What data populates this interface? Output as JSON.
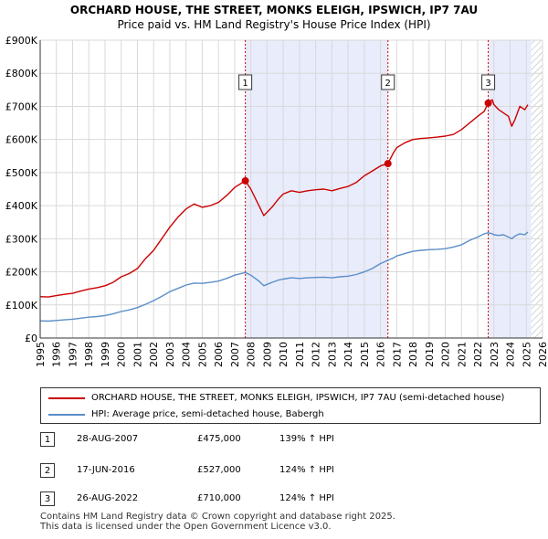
{
  "title_line1": "ORCHARD HOUSE, THE STREET, MONKS ELEIGH, IPSWICH, IP7 7AU",
  "title_line2": "Price paid vs. HM Land Registry's House Price Index (HPI)",
  "colors": {
    "property_line": "#cc0000",
    "hpi_line": "#5b8ec9",
    "shade": "#e8ecfb",
    "hatch": "#bbbbbb",
    "marker_line": "#cc0000",
    "grid": "#d9d9d9"
  },
  "chart_data": {
    "type": "line",
    "title": "ORCHARD HOUSE, THE STREET, MONKS ELEIGH, IPSWICH, IP7 7AU",
    "subtitle": "Price paid vs. HM Land Registry's House Price Index (HPI)",
    "xlabel": "",
    "ylabel": "",
    "xlim": [
      1995,
      2026
    ],
    "ylim": [
      0,
      900000
    ],
    "y_ticks": [
      0,
      100000,
      200000,
      300000,
      400000,
      500000,
      600000,
      700000,
      800000,
      900000
    ],
    "y_tick_labels": [
      "£0",
      "£100K",
      "£200K",
      "£300K",
      "£400K",
      "£500K",
      "£600K",
      "£700K",
      "£800K",
      "£900K"
    ],
    "x_ticks": [
      1995,
      1996,
      1997,
      1998,
      1999,
      2000,
      2001,
      2002,
      2003,
      2004,
      2005,
      2006,
      2007,
      2008,
      2009,
      2010,
      2011,
      2012,
      2013,
      2014,
      2015,
      2016,
      2017,
      2018,
      2019,
      2020,
      2021,
      2022,
      2023,
      2024,
      2025,
      2026
    ],
    "x_tick_labels": [
      "1995",
      "1996",
      "1997",
      "1998",
      "1999",
      "2000",
      "2001",
      "2002",
      "2003",
      "2004",
      "2005",
      "2006",
      "2007",
      "2008",
      "2009",
      "2010",
      "2011",
      "2012",
      "2013",
      "2014",
      "2015",
      "2016",
      "2017",
      "2018",
      "2019",
      "2020",
      "2021",
      "2022",
      "2023",
      "2024",
      "2025",
      "2026"
    ],
    "grid": true,
    "shaded_ranges": [
      [
        2007.66,
        2016.46
      ],
      [
        2022.65,
        2025.3
      ]
    ],
    "hatched_range": [
      2025.3,
      2026
    ],
    "series": [
      {
        "name": "ORCHARD HOUSE, THE STREET, MONKS ELEIGH, IPSWICH, IP7 7AU (semi-detached house)",
        "color": "#cc0000",
        "x": [
          1995.0,
          1995.5,
          1996.0,
          1996.5,
          1997.0,
          1997.5,
          1998.0,
          1998.5,
          1999.0,
          1999.5,
          2000.0,
          2000.5,
          2001.0,
          2001.5,
          2002.0,
          2002.5,
          2003.0,
          2003.5,
          2004.0,
          2004.5,
          2005.0,
          2005.5,
          2006.0,
          2006.5,
          2007.0,
          2007.66,
          2008.0,
          2008.5,
          2008.8,
          2009.0,
          2009.3,
          2009.7,
          2010.0,
          2010.5,
          2011.0,
          2011.5,
          2012.0,
          2012.5,
          2013.0,
          2013.5,
          2014.0,
          2014.5,
          2015.0,
          2015.5,
          2016.0,
          2016.46,
          2016.8,
          2017.0,
          2017.5,
          2018.0,
          2018.5,
          2019.0,
          2019.5,
          2020.0,
          2020.5,
          2021.0,
          2021.5,
          2022.0,
          2022.4,
          2022.65,
          2022.9,
          2023.0,
          2023.3,
          2023.6,
          2023.9,
          2024.1,
          2024.3,
          2024.6,
          2024.9,
          2025.1
        ],
        "values": [
          125000,
          124000,
          128000,
          132000,
          135000,
          142000,
          148000,
          152000,
          158000,
          168000,
          185000,
          195000,
          210000,
          240000,
          265000,
          300000,
          335000,
          365000,
          390000,
          405000,
          395000,
          400000,
          410000,
          430000,
          455000,
          475000,
          450000,
          400000,
          370000,
          380000,
          395000,
          420000,
          435000,
          445000,
          440000,
          445000,
          448000,
          450000,
          445000,
          452000,
          458000,
          470000,
          490000,
          505000,
          520000,
          527000,
          560000,
          575000,
          590000,
          600000,
          603000,
          605000,
          607000,
          610000,
          615000,
          630000,
          650000,
          670000,
          685000,
          710000,
          720000,
          705000,
          690000,
          680000,
          670000,
          640000,
          660000,
          700000,
          690000,
          705000
        ]
      },
      {
        "name": "HPI: Average price, semi-detached house, Babergh",
        "color": "#5b8ec9",
        "x": [
          1995.0,
          1995.5,
          1996.0,
          1996.5,
          1997.0,
          1997.5,
          1998.0,
          1998.5,
          1999.0,
          1999.5,
          2000.0,
          2000.5,
          2001.0,
          2001.5,
          2002.0,
          2002.5,
          2003.0,
          2003.5,
          2004.0,
          2004.5,
          2005.0,
          2005.5,
          2006.0,
          2006.5,
          2007.0,
          2007.66,
          2008.0,
          2008.5,
          2008.8,
          2009.0,
          2009.3,
          2009.7,
          2010.0,
          2010.5,
          2011.0,
          2011.5,
          2012.0,
          2012.5,
          2013.0,
          2013.5,
          2014.0,
          2014.5,
          2015.0,
          2015.5,
          2016.0,
          2016.46,
          2016.8,
          2017.0,
          2017.5,
          2018.0,
          2018.5,
          2019.0,
          2019.5,
          2020.0,
          2020.5,
          2021.0,
          2021.5,
          2022.0,
          2022.4,
          2022.65,
          2022.9,
          2023.0,
          2023.3,
          2023.6,
          2023.9,
          2024.1,
          2024.3,
          2024.6,
          2024.9,
          2025.1
        ],
        "values": [
          52000,
          51000,
          53000,
          55000,
          57000,
          60000,
          63000,
          65000,
          68000,
          73000,
          80000,
          85000,
          92000,
          102000,
          113000,
          126000,
          140000,
          150000,
          160000,
          166000,
          165000,
          168000,
          172000,
          180000,
          190000,
          198000,
          190000,
          172000,
          158000,
          162000,
          168000,
          175000,
          178000,
          182000,
          180000,
          182000,
          183000,
          184000,
          182000,
          185000,
          187000,
          192000,
          200000,
          210000,
          225000,
          235000,
          242000,
          248000,
          255000,
          262000,
          265000,
          267000,
          268000,
          270000,
          275000,
          282000,
          295000,
          305000,
          315000,
          318000,
          315000,
          312000,
          310000,
          312000,
          305000,
          300000,
          308000,
          315000,
          312000,
          320000
        ]
      }
    ],
    "sale_markers": [
      {
        "label": "1",
        "x": 2007.66,
        "value": 475000
      },
      {
        "label": "2",
        "x": 2016.46,
        "value": 527000
      },
      {
        "label": "3",
        "x": 2022.65,
        "value": 710000
      }
    ]
  },
  "legend": {
    "property_label": "ORCHARD HOUSE, THE STREET, MONKS ELEIGH, IPSWICH, IP7 7AU (semi-detached house)",
    "hpi_label": "HPI: Average price, semi-detached house, Babergh"
  },
  "sales": [
    {
      "num": "1",
      "date": "28-AUG-2007",
      "price": "£475,000",
      "hpi": "139% ↑ HPI"
    },
    {
      "num": "2",
      "date": "17-JUN-2016",
      "price": "£527,000",
      "hpi": "124% ↑ HPI"
    },
    {
      "num": "3",
      "date": "26-AUG-2022",
      "price": "£710,000",
      "hpi": "124% ↑ HPI"
    }
  ],
  "footer": {
    "line1": "Contains HM Land Registry data © Crown copyright and database right 2025.",
    "line2": "This data is licensed under the Open Government Licence v3.0."
  }
}
